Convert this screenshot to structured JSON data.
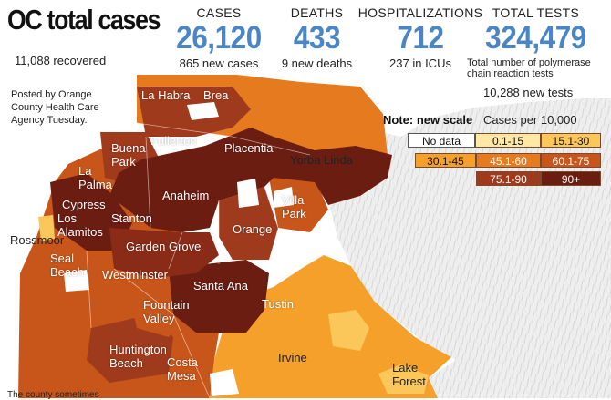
{
  "header": {
    "title": "OC total cases",
    "recovered": "11,088 recovered"
  },
  "stats": [
    {
      "label": "CASES",
      "value": "26,120",
      "sub": "865 new cases"
    },
    {
      "label": "DEATHS",
      "value": "433",
      "sub": "9 new deaths"
    },
    {
      "label": "HOSPITALIZATIONS",
      "value": "712",
      "sub": "237 in ICUs"
    },
    {
      "label": "TOTAL TESTS",
      "value": "324,479",
      "sub": "Total number of polymerase chain reaction tests",
      "sub2": "10,288 new tests"
    }
  ],
  "posted_note": "Posted by Orange County Health Care Agency Tuesday.",
  "footnote": "The county sometimes",
  "legend": {
    "note": "Note: new scale",
    "title": "Cases per 10,000",
    "bins": [
      {
        "label": "No data",
        "color": "#ffffff",
        "text": "#111111"
      },
      {
        "label": "0.1-15",
        "color": "#fde8a6",
        "text": "#111111"
      },
      {
        "label": "15.1-30",
        "color": "#fcc75a",
        "text": "#111111"
      },
      {
        "label": "30.1-45",
        "color": "#f5a02b",
        "text": "#111111"
      },
      {
        "label": "45.1-60",
        "color": "#e57a1f",
        "text": "#ffffff"
      },
      {
        "label": "60.1-75",
        "color": "#c8561a",
        "text": "#ffffff"
      },
      {
        "label": "75.1-90",
        "color": "#a03a1c",
        "text": "#ffffff"
      },
      {
        "label": "90+",
        "color": "#6b1d12",
        "text": "#ffffff"
      }
    ]
  },
  "chart_data": {
    "type": "choropleth map",
    "title": "OC total cases",
    "legend_title": "Cases per 10,000",
    "legend_note": "Note: new scale",
    "legend_placement": "top-right",
    "categories": [
      "No data",
      "0.1-15",
      "15.1-30",
      "30.1-45",
      "45.1-60",
      "60.1-75",
      "75.1-90",
      "90+"
    ],
    "city_labels": [
      {
        "name": "La Habra"
      },
      {
        "name": "Brea"
      },
      {
        "name": "Fullerton"
      },
      {
        "name": "Buena Park"
      },
      {
        "name": "Placentia"
      },
      {
        "name": "Yorba Linda"
      },
      {
        "name": "La Palma"
      },
      {
        "name": "Cypress"
      },
      {
        "name": "Anaheim"
      },
      {
        "name": "Villa Park"
      },
      {
        "name": "Los Alamitos"
      },
      {
        "name": "Stanton"
      },
      {
        "name": "Orange"
      },
      {
        "name": "Rossmoor"
      },
      {
        "name": "Garden Grove"
      },
      {
        "name": "Seal Beach"
      },
      {
        "name": "Westminster"
      },
      {
        "name": "Santa Ana"
      },
      {
        "name": "Fountain Valley"
      },
      {
        "name": "Tustin"
      },
      {
        "name": "Huntington Beach"
      },
      {
        "name": "Costa Mesa"
      },
      {
        "name": "Irvine"
      },
      {
        "name": "Lake Forest"
      }
    ]
  }
}
